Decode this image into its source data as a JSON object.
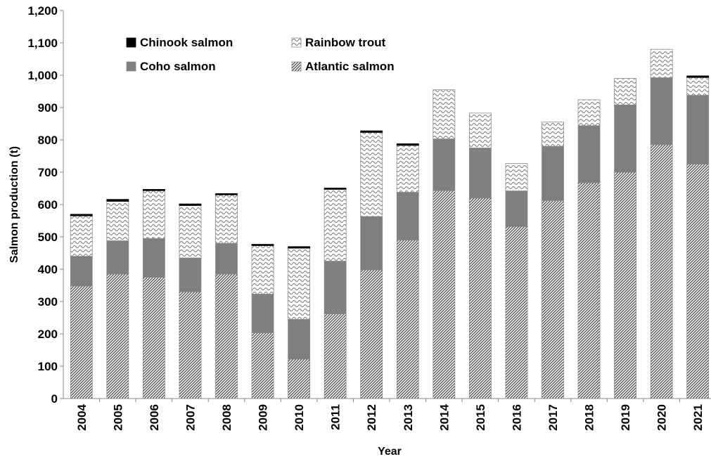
{
  "chart_data": {
    "type": "bar",
    "stacked": true,
    "title": "",
    "xlabel": "Year",
    "ylabel": "Salmon production (t)",
    "ylim": [
      0,
      1200
    ],
    "yticks": [
      "0",
      "100",
      "200",
      "300",
      "400",
      "500",
      "600",
      "700",
      "800",
      "900",
      "1,000",
      "1,100",
      "1,200"
    ],
    "categories": [
      "2004",
      "2005",
      "2006",
      "2007",
      "2008",
      "2009",
      "2010",
      "2011",
      "2012",
      "2013",
      "2014",
      "2015",
      "2016",
      "2017",
      "2018",
      "2019",
      "2020",
      "2021"
    ],
    "series": [
      {
        "name": "Atlantic salmon",
        "pattern": "diagonal-hatch",
        "color": "#555555",
        "values": [
          348,
          385,
          375,
          330,
          385,
          203,
          122,
          262,
          398,
          490,
          643,
          620,
          532,
          612,
          667,
          700,
          785,
          725
        ]
      },
      {
        "name": "Coho salmon",
        "pattern": "solid",
        "color": "#7f7f7f",
        "values": [
          92,
          103,
          120,
          105,
          95,
          120,
          123,
          163,
          165,
          148,
          160,
          155,
          110,
          168,
          177,
          208,
          207,
          213
        ]
      },
      {
        "name": "Rainbow trout",
        "pattern": "wave",
        "color": "#ffffff",
        "values": [
          125,
          122,
          148,
          162,
          150,
          150,
          220,
          222,
          260,
          145,
          152,
          108,
          85,
          75,
          80,
          82,
          88,
          55
        ]
      },
      {
        "name": "Chinook salmon",
        "pattern": "solid",
        "color": "#000000",
        "values": [
          5,
          6,
          4,
          5,
          4,
          4,
          5,
          4,
          5,
          5,
          0,
          0,
          0,
          0,
          0,
          0,
          0,
          5
        ]
      }
    ],
    "legend": {
      "placement": "top-left",
      "order": [
        "Chinook salmon",
        "Rainbow trout",
        "Coho salmon",
        "Atlantic salmon"
      ]
    },
    "grid": false
  }
}
